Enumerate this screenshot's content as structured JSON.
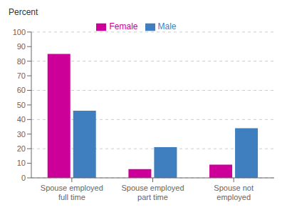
{
  "chart_data": {
    "type": "bar",
    "ylabel": "Percent",
    "categories": [
      "Spouse employed full time",
      "Spouse employed part time",
      "Spouse not employed"
    ],
    "series": [
      {
        "name": "Female",
        "color": "#CC0099",
        "values": [
          85,
          6,
          9
        ]
      },
      {
        "name": "Male",
        "color": "#3F7FBF",
        "values": [
          46,
          21,
          34
        ]
      }
    ],
    "ylim": [
      0,
      100
    ],
    "yticks": [
      0,
      10,
      20,
      30,
      40,
      50,
      60,
      70,
      80,
      90,
      100
    ],
    "grid": true,
    "legend": "top"
  }
}
